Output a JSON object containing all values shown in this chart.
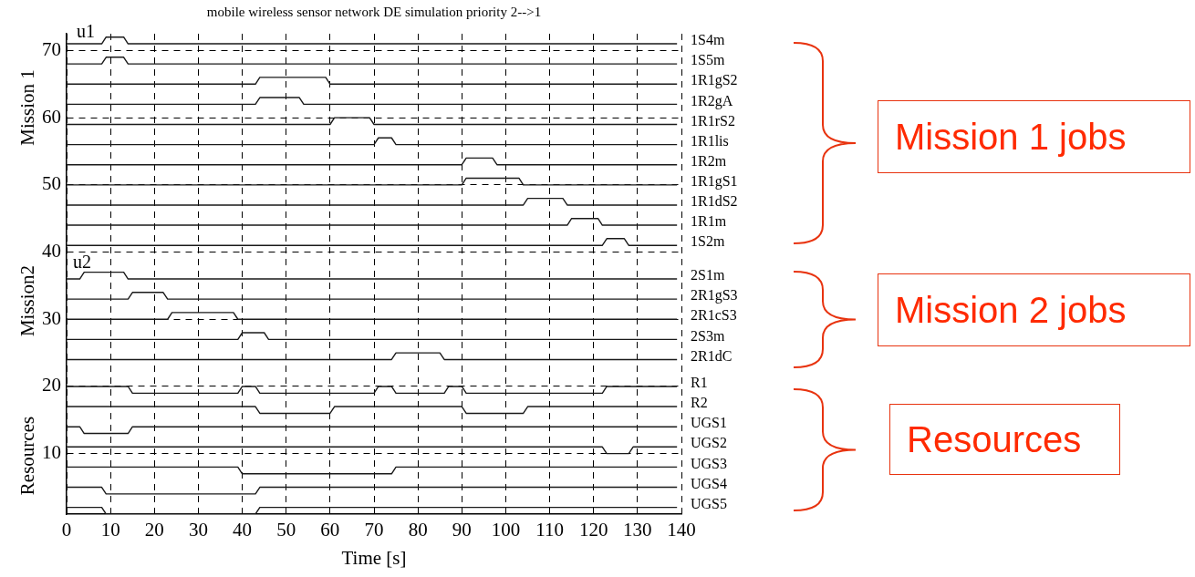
{
  "chart_data": {
    "type": "line",
    "title": "mobile wireless sensor network DE simulation priority 2-->1",
    "xlabel": "Time [s]",
    "xlim": [
      0,
      140
    ],
    "xticks": [
      0,
      10,
      20,
      30,
      40,
      50,
      60,
      70,
      80,
      90,
      100,
      110,
      120,
      130,
      140
    ],
    "ylim": [
      1,
      72.5
    ],
    "yticks": [
      10,
      20,
      30,
      40,
      50,
      60,
      70
    ],
    "grid": true,
    "legend": false,
    "marker": "none",
    "line_style": "solid",
    "annotations": [
      "u1",
      "u2",
      "Mission 1",
      "Mission2",
      "Resources",
      "Mission 1 jobs",
      "Mission 2 jobs",
      "Resources"
    ],
    "series": [
      {
        "name": "1S4m",
        "color": "#1a1a1a",
        "x": [
          0,
          8,
          9,
          13,
          14,
          139
        ],
        "values": [
          71,
          71,
          72,
          72,
          71,
          71
        ]
      },
      {
        "name": "1S5m",
        "color": "#1a1a1a",
        "x": [
          0,
          8,
          9,
          13,
          14,
          139
        ],
        "values": [
          68,
          68,
          69,
          69,
          68,
          68
        ]
      },
      {
        "name": "1R1gS2",
        "color": "#1a1a1a",
        "x": [
          0,
          43,
          44,
          59,
          60,
          139
        ],
        "values": [
          65,
          65,
          66,
          66,
          65,
          65
        ]
      },
      {
        "name": "1R2gA",
        "color": "#1a1a1a",
        "x": [
          0,
          43,
          44,
          53,
          54,
          139
        ],
        "values": [
          62,
          62,
          63,
          63,
          62,
          62
        ]
      },
      {
        "name": "1R1rS2",
        "color": "#1a1a1a",
        "x": [
          0,
          60,
          61,
          69,
          70,
          139
        ],
        "values": [
          59,
          59,
          60,
          60,
          59,
          59
        ]
      },
      {
        "name": "1R1lis",
        "color": "#1a1a1a",
        "x": [
          0,
          70,
          71,
          74,
          75,
          139
        ],
        "values": [
          56,
          56,
          57,
          57,
          56,
          56
        ]
      },
      {
        "name": "1R2m",
        "color": "#1a1a1a",
        "x": [
          0,
          90,
          91,
          97,
          98,
          139
        ],
        "values": [
          53,
          53,
          54,
          54,
          53,
          53
        ]
      },
      {
        "name": "1R1gS1",
        "color": "#1a1a1a",
        "x": [
          0,
          90,
          91,
          103,
          104,
          139
        ],
        "values": [
          50,
          50,
          51,
          51,
          50,
          50
        ]
      },
      {
        "name": "1R1dS2",
        "color": "#1a1a1a",
        "x": [
          0,
          104,
          105,
          113,
          114,
          139
        ],
        "values": [
          47,
          47,
          48,
          48,
          47,
          47
        ]
      },
      {
        "name": "1R1m",
        "color": "#1a1a1a",
        "x": [
          0,
          114,
          115,
          121,
          122,
          139
        ],
        "values": [
          44,
          44,
          45,
          45,
          44,
          44
        ]
      },
      {
        "name": "1S2m",
        "color": "#1a1a1a",
        "x": [
          0,
          122,
          123,
          127,
          128,
          139
        ],
        "values": [
          41,
          41,
          42,
          42,
          41,
          41
        ]
      },
      {
        "name": "2S1m",
        "color": "#1a1a1a",
        "x": [
          0,
          3,
          4,
          13,
          14,
          139
        ],
        "values": [
          36,
          36,
          37,
          37,
          36,
          36
        ]
      },
      {
        "name": "2R1gS3",
        "color": "#1a1a1a",
        "x": [
          0,
          14,
          15,
          22,
          23,
          139
        ],
        "values": [
          33,
          33,
          34,
          34,
          33,
          33
        ]
      },
      {
        "name": "2R1cS3",
        "color": "#1a1a1a",
        "x": [
          0,
          23,
          24,
          38,
          39,
          139
        ],
        "values": [
          30,
          30,
          31,
          31,
          30,
          30
        ]
      },
      {
        "name": "2S3m",
        "color": "#1a1a1a",
        "x": [
          0,
          39,
          40,
          45,
          46,
          139
        ],
        "values": [
          27,
          27,
          28,
          28,
          27,
          27
        ]
      },
      {
        "name": "2R1dC",
        "color": "#1a1a1a",
        "x": [
          0,
          74,
          75,
          85,
          86,
          139
        ],
        "values": [
          24,
          24,
          25,
          25,
          24,
          24
        ]
      },
      {
        "name": "R1",
        "color": "#1a1a1a",
        "x": [
          0,
          14,
          15,
          39,
          40,
          43,
          44,
          70,
          71,
          74,
          75,
          86,
          87,
          90,
          91,
          122,
          123,
          139
        ],
        "values": [
          20,
          20,
          19,
          19,
          20,
          20,
          19,
          19,
          20,
          20,
          19,
          19,
          20,
          20,
          19,
          19,
          20,
          20
        ]
      },
      {
        "name": "R2",
        "color": "#1a1a1a",
        "x": [
          0,
          43,
          44,
          60,
          61,
          90,
          91,
          104,
          105,
          139
        ],
        "values": [
          17,
          17,
          16,
          16,
          17,
          17,
          16,
          16,
          17,
          17
        ]
      },
      {
        "name": "UGS1",
        "color": "#1a1a1a",
        "x": [
          0,
          3,
          4,
          14,
          15,
          139
        ],
        "values": [
          14,
          14,
          13,
          13,
          14,
          14
        ]
      },
      {
        "name": "UGS2",
        "color": "#1a1a1a",
        "x": [
          0,
          122,
          123,
          128,
          129,
          139
        ],
        "values": [
          11,
          11,
          10,
          10,
          11,
          11
        ]
      },
      {
        "name": "UGS3",
        "color": "#1a1a1a",
        "x": [
          0,
          39,
          40,
          74,
          75,
          139
        ],
        "values": [
          8,
          8,
          7,
          7,
          8,
          8
        ]
      },
      {
        "name": "UGS4",
        "color": "#1a1a1a",
        "x": [
          0,
          8,
          9,
          43,
          44,
          139
        ],
        "values": [
          5,
          5,
          4,
          4,
          5,
          5
        ]
      },
      {
        "name": "UGS5",
        "color": "#1a1a1a",
        "x": [
          0,
          8,
          9,
          43,
          44,
          139
        ],
        "values": [
          2,
          2,
          1,
          1,
          2,
          2
        ]
      }
    ]
  }
}
